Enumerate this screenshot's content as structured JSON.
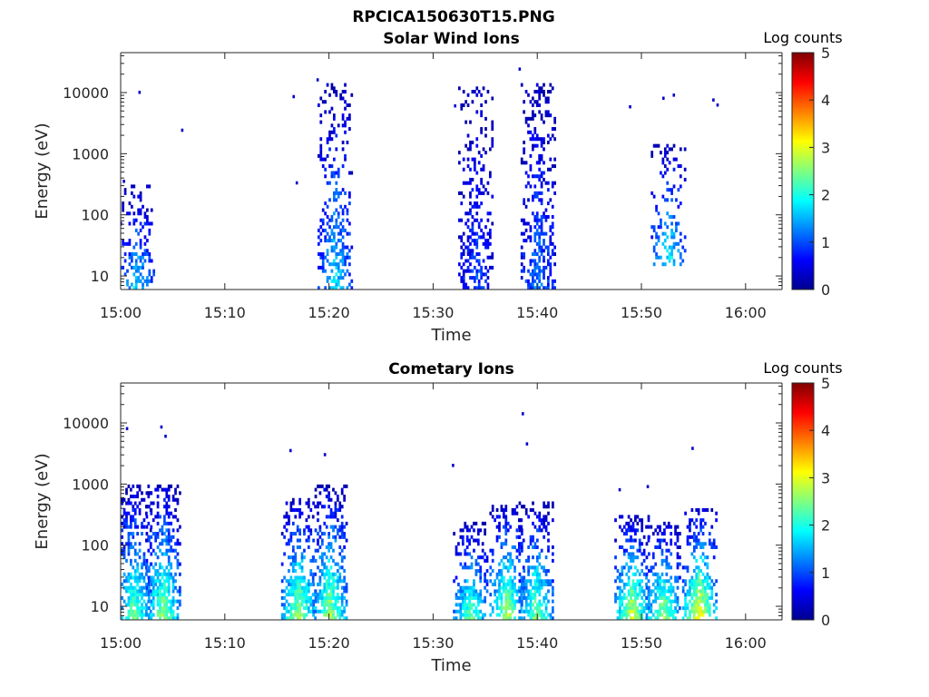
{
  "figure_title": "RPCICA150630T15.PNG",
  "chart_data": [
    {
      "type": "heatmap",
      "title": "Solar Wind Ions",
      "xlabel": "Time",
      "ylabel": "Energy (eV)",
      "yscale": "log",
      "ylim": [
        6,
        45000
      ],
      "x_domain_minutes": [
        0,
        63.5
      ],
      "x_ticks": [
        {
          "label": "15:00",
          "min": 0
        },
        {
          "label": "15:10",
          "min": 10
        },
        {
          "label": "15:20",
          "min": 20
        },
        {
          "label": "15:30",
          "min": 30
        },
        {
          "label": "15:40",
          "min": 40
        },
        {
          "label": "15:50",
          "min": 50
        },
        {
          "label": "16:00",
          "min": 60
        }
      ],
      "y_ticks": [
        {
          "label": "10",
          "value": 10
        },
        {
          "label": "100",
          "value": 100
        },
        {
          "label": "1000",
          "value": 1000
        },
        {
          "label": "10000",
          "value": 10000
        }
      ],
      "colorbar": {
        "label": "Log counts",
        "range": [
          0,
          5
        ],
        "ticks": [
          "0",
          "1",
          "2",
          "3",
          "4",
          "5"
        ]
      },
      "bursts": [
        {
          "t": 1.5,
          "emin": 6,
          "emax": 300,
          "peak": 1.8,
          "dens": 0.35
        },
        {
          "t": 20.5,
          "emin": 6,
          "emax": 15000,
          "peak": 1.8,
          "dens": 0.3
        },
        {
          "t": 34,
          "emin": 6,
          "emax": 12000,
          "peak": 1.0,
          "dens": 0.3
        },
        {
          "t": 40,
          "emin": 6,
          "emax": 15000,
          "peak": 1.3,
          "dens": 0.35
        },
        {
          "t": 52.5,
          "emin": 15,
          "emax": 1500,
          "peak": 2.0,
          "dens": 0.25
        }
      ],
      "scatter": [
        {
          "t": 0.2,
          "e": 350
        },
        {
          "t": 1.7,
          "e": 10000
        },
        {
          "t": 5.8,
          "e": 2400
        },
        {
          "t": 16.5,
          "e": 8500
        },
        {
          "t": 16.8,
          "e": 330
        },
        {
          "t": 18.8,
          "e": 16000
        },
        {
          "t": 32.0,
          "e": 6000
        },
        {
          "t": 38.2,
          "e": 24000
        },
        {
          "t": 48.8,
          "e": 5800
        },
        {
          "t": 52.0,
          "e": 8000
        },
        {
          "t": 53.0,
          "e": 9000
        },
        {
          "t": 56.8,
          "e": 7500
        },
        {
          "t": 57.2,
          "e": 6200
        }
      ]
    },
    {
      "type": "heatmap",
      "title": "Cometary Ions",
      "xlabel": "Time",
      "ylabel": "Energy (eV)",
      "yscale": "log",
      "ylim": [
        6,
        45000
      ],
      "x_domain_minutes": [
        0,
        63.5
      ],
      "x_ticks": [
        {
          "label": "15:00",
          "min": 0
        },
        {
          "label": "15:10",
          "min": 10
        },
        {
          "label": "15:20",
          "min": 20
        },
        {
          "label": "15:30",
          "min": 30
        },
        {
          "label": "15:40",
          "min": 40
        },
        {
          "label": "15:50",
          "min": 50
        },
        {
          "label": "16:00",
          "min": 60
        }
      ],
      "y_ticks": [
        {
          "label": "10",
          "value": 10
        },
        {
          "label": "100",
          "value": 100
        },
        {
          "label": "1000",
          "value": 1000
        },
        {
          "label": "10000",
          "value": 10000
        }
      ],
      "colorbar": {
        "label": "Log counts",
        "range": [
          0,
          5
        ],
        "ticks": [
          "0",
          "1",
          "2",
          "3",
          "4",
          "5"
        ]
      },
      "bursts": [
        {
          "t": 1.2,
          "emin": 6,
          "emax": 1000,
          "peak": 2.5,
          "dens": 0.5
        },
        {
          "t": 4.0,
          "emin": 6,
          "emax": 1000,
          "peak": 2.7,
          "dens": 0.5
        },
        {
          "t": 17.0,
          "emin": 6,
          "emax": 600,
          "peak": 2.8,
          "dens": 0.5
        },
        {
          "t": 20.0,
          "emin": 6,
          "emax": 1000,
          "peak": 2.8,
          "dens": 0.5
        },
        {
          "t": 33.5,
          "emin": 6,
          "emax": 250,
          "peak": 2.5,
          "dens": 0.45
        },
        {
          "t": 37.0,
          "emin": 6,
          "emax": 450,
          "peak": 2.9,
          "dens": 0.5
        },
        {
          "t": 39.8,
          "emin": 6,
          "emax": 500,
          "peak": 2.6,
          "dens": 0.45
        },
        {
          "t": 49.0,
          "emin": 6,
          "emax": 300,
          "peak": 3.1,
          "dens": 0.5
        },
        {
          "t": 52.0,
          "emin": 6,
          "emax": 250,
          "peak": 2.8,
          "dens": 0.5
        },
        {
          "t": 55.5,
          "emin": 6,
          "emax": 400,
          "peak": 3.3,
          "dens": 0.5
        }
      ],
      "scatter": [
        {
          "t": 0.5,
          "e": 8000
        },
        {
          "t": 3.8,
          "e": 8500
        },
        {
          "t": 4.2,
          "e": 6000
        },
        {
          "t": 16.2,
          "e": 3500
        },
        {
          "t": 19.5,
          "e": 3000
        },
        {
          "t": 31.8,
          "e": 2000
        },
        {
          "t": 38.5,
          "e": 14000
        },
        {
          "t": 38.9,
          "e": 4500
        },
        {
          "t": 47.8,
          "e": 800
        },
        {
          "t": 50.5,
          "e": 900
        },
        {
          "t": 54.8,
          "e": 3800
        }
      ]
    }
  ]
}
